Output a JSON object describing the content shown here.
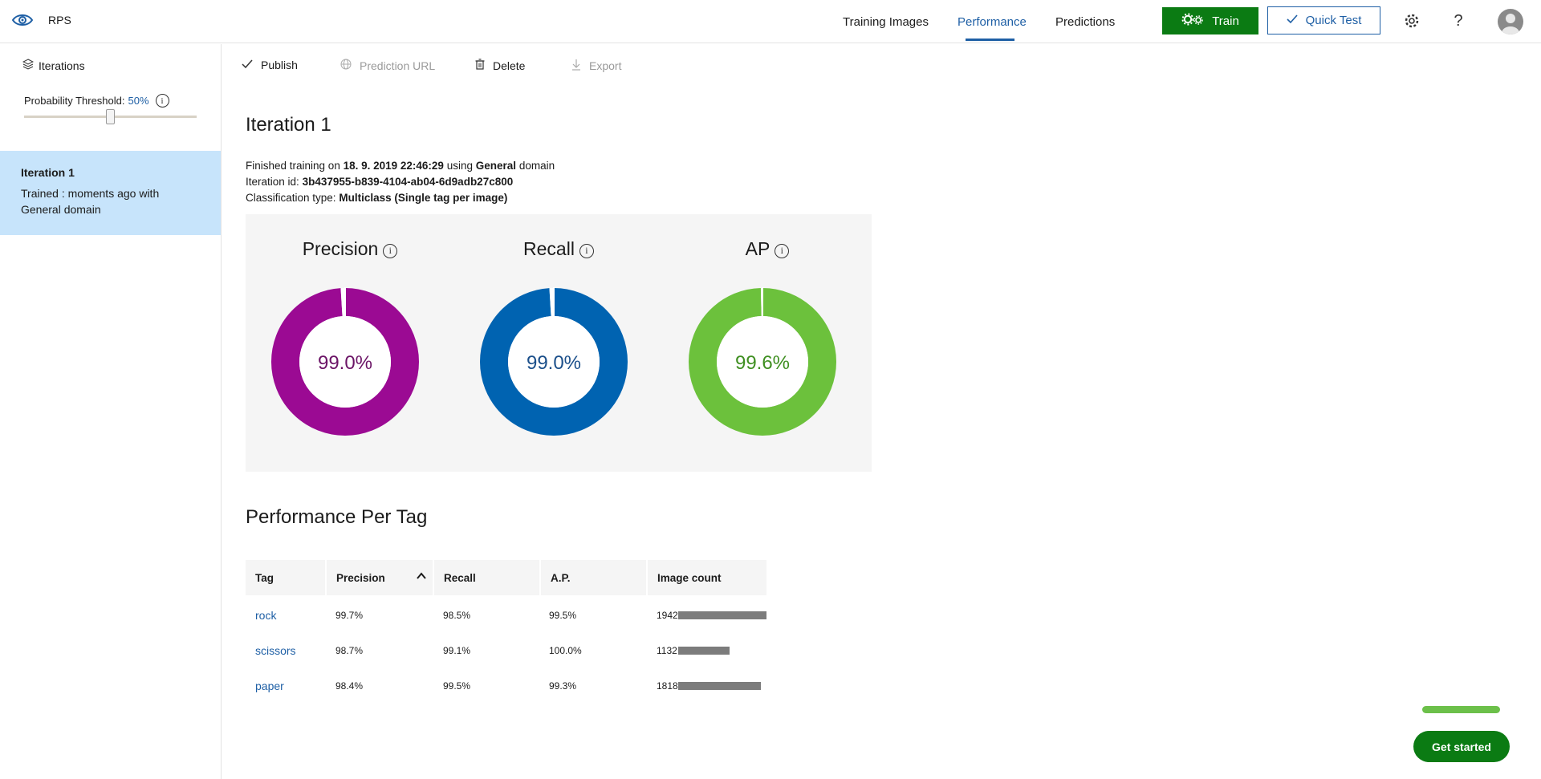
{
  "header": {
    "app_name": "RPS",
    "tabs": [
      {
        "label": "Training Images"
      },
      {
        "label": "Performance"
      },
      {
        "label": "Predictions"
      }
    ],
    "train_label": "Train",
    "quick_test_label": "Quick Test",
    "icons": [
      "eye-logo-icon",
      "gear-icon",
      "help-icon",
      "avatar"
    ]
  },
  "sidebar": {
    "iterations_label": "Iterations",
    "threshold_label": "Probability Threshold:",
    "threshold_value": "50%",
    "threshold_fraction": 0.5,
    "iteration_card": {
      "title": "Iteration 1",
      "subtitle": "Trained : moments ago with General domain"
    }
  },
  "toolbar": {
    "publish": "Publish",
    "prediction_url": "Prediction URL",
    "delete": "Delete",
    "export": "Export"
  },
  "main": {
    "title": "Iteration 1",
    "info": {
      "finished_prefix": "Finished training on",
      "finished_date": "18. 9. 2019 22:46:29",
      "using_word": "using",
      "domain_name": "General",
      "domain_suffix": "domain",
      "iteration_id_label": "Iteration id:",
      "iteration_id": "3b437955-b839-4104-ab04-6d9adb27c800",
      "classification_label": "Classification type:",
      "classification_value": "Multiclass (Single tag per image)"
    },
    "metrics": [
      {
        "label": "Precision",
        "value": "99.0%",
        "fraction": 0.99,
        "color": "#9b0a93",
        "text_color": "#6b1466"
      },
      {
        "label": "Recall",
        "value": "99.0%",
        "fraction": 0.99,
        "color": "#0063b1",
        "text_color": "#1b4f8a"
      },
      {
        "label": "AP",
        "value": "99.6%",
        "fraction": 0.996,
        "color": "#6cc13c",
        "text_color": "#3f8f21"
      }
    ],
    "per_tag_title": "Performance Per Tag",
    "table": {
      "headers": [
        "Tag",
        "Precision",
        "Recall",
        "A.P.",
        "Image count"
      ],
      "rows": [
        {
          "tag": "rock",
          "precision": "99.7%",
          "recall": "98.5%",
          "ap": "99.5%",
          "count": "1942",
          "count_value": 1942
        },
        {
          "tag": "scissors",
          "precision": "98.7%",
          "recall": "99.1%",
          "ap": "100.0%",
          "count": "1132",
          "count_value": 1132
        },
        {
          "tag": "paper",
          "precision": "98.4%",
          "recall": "99.5%",
          "ap": "99.3%",
          "count": "1818",
          "count_value": 1818
        }
      ]
    }
  },
  "help_widget": {
    "get_started": "Get started",
    "progress_fraction": 1.0
  },
  "colors": {
    "accent_blue": "#1e5fa5",
    "train_green": "#0b7b13",
    "selected_bg": "#c7e4fb"
  }
}
